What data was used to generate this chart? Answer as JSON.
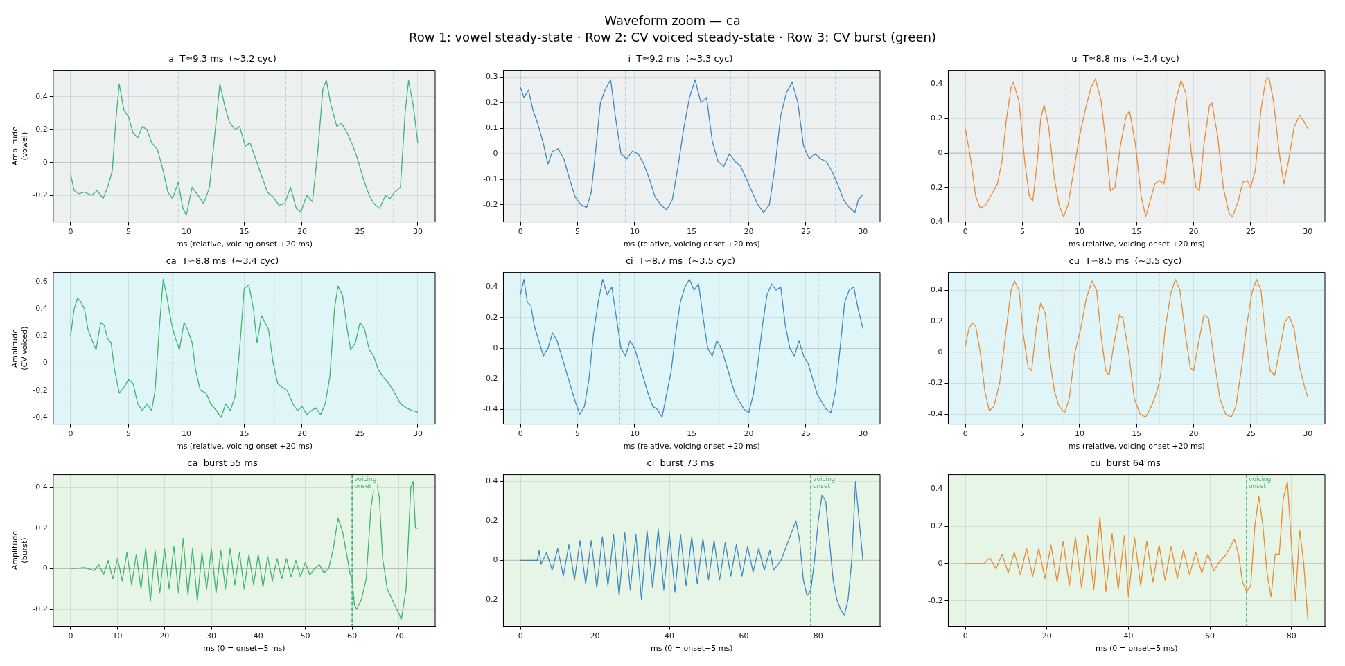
{
  "chart_data": [
    {
      "type": "other",
      "title": "Waveform zoom — ca",
      "subtitle": "Row 1: vowel steady-state · Row 2: CV voiced steady-state · Row 3: CV burst (green)"
    },
    {
      "type": "line",
      "title": "a  T≈9.3 ms  (~3.2 cyc)",
      "xlabel": "ms (relative, voicing onset +20 ms)",
      "ylabel": "Amplitude\n(vowel)",
      "xlim": [
        -1.5,
        31.5
      ],
      "xticks": [
        0,
        5,
        10,
        15,
        20,
        25,
        30
      ],
      "ylim": [
        -0.362,
        0.562
      ],
      "yticks": [
        -0.2,
        0,
        0.2,
        0.4
      ],
      "grid": true,
      "x": [
        0,
        0.3,
        0.7,
        1.2,
        1.8,
        2.3,
        2.8,
        3.2,
        3.6,
        3.9,
        4.2,
        4.6,
        5.0,
        5.4,
        5.8,
        6.2,
        6.6,
        7.0,
        7.5,
        8.0,
        8.4,
        8.8,
        9.3,
        9.7,
        10.0,
        10.5,
        11.0,
        11.5,
        12.0,
        12.5,
        12.9,
        13.3,
        13.7,
        14.2,
        14.6,
        15.1,
        15.5,
        16.0,
        16.5,
        17.0,
        17.5,
        18.0,
        18.5,
        19.0,
        19.5,
        19.9,
        20.4,
        20.9,
        21.4,
        21.8,
        22.1,
        22.5,
        23.0,
        23.4,
        23.9,
        24.4,
        24.8,
        25.3,
        25.8,
        26.2,
        26.7,
        27.2,
        27.6,
        28.0,
        28.5,
        28.9,
        29.2,
        29.6,
        30.0
      ],
      "series": [
        {
          "color": "#3cb46e",
          "values": [
            -0.07,
            -0.17,
            -0.19,
            -0.18,
            -0.2,
            -0.17,
            -0.22,
            -0.15,
            -0.05,
            0.25,
            0.48,
            0.32,
            0.28,
            0.18,
            0.15,
            0.22,
            0.2,
            0.12,
            0.08,
            -0.05,
            -0.18,
            -0.22,
            -0.12,
            -0.28,
            -0.32,
            -0.15,
            -0.2,
            -0.25,
            -0.15,
            0.2,
            0.48,
            0.35,
            0.25,
            0.2,
            0.22,
            0.1,
            0.12,
            0.02,
            -0.08,
            -0.18,
            -0.21,
            -0.26,
            -0.25,
            -0.15,
            -0.28,
            -0.3,
            -0.2,
            -0.24,
            0.1,
            0.45,
            0.5,
            0.35,
            0.22,
            0.24,
            0.18,
            0.1,
            0.02,
            -0.1,
            -0.2,
            -0.25,
            -0.28,
            -0.2,
            -0.22,
            -0.18,
            -0.15,
            0.3,
            0.5,
            0.35,
            0.12
          ]
        }
      ],
      "ref_lines": [
        {
          "axis": "y",
          "value": 0,
          "color": "#b4b8b8",
          "line_style": "solid"
        },
        {
          "axis": "x",
          "value": 0,
          "color": "#9fd9b8",
          "line_style": "dashed"
        },
        {
          "axis": "x",
          "value": 9.3,
          "color": "#9fd9b8",
          "line_style": "dashed"
        },
        {
          "axis": "x",
          "value": 18.6,
          "color": "#9fd9b8",
          "line_style": "dashed"
        },
        {
          "axis": "x",
          "value": 27.9,
          "color": "#9fd9b8",
          "line_style": "dashed"
        }
      ]
    },
    {
      "type": "line",
      "title": "i  T≈9.2 ms  (~3.3 cyc)",
      "xlabel": "ms (relative, voicing onset +20 ms)",
      "xlim": [
        -1.5,
        31.5
      ],
      "xticks": [
        0,
        5,
        10,
        15,
        20,
        25,
        30
      ],
      "ylim": [
        -0.267,
        0.327
      ],
      "yticks": [
        -0.2,
        -0.1,
        0,
        0.1,
        0.2,
        0.3
      ],
      "grid": true,
      "x": [
        0,
        0.3,
        0.7,
        1.1,
        1.5,
        2.0,
        2.4,
        2.8,
        3.3,
        3.8,
        4.3,
        4.8,
        5.3,
        5.8,
        6.2,
        6.6,
        7.0,
        7.4,
        7.9,
        8.3,
        8.8,
        9.3,
        9.8,
        10.3,
        10.8,
        11.3,
        11.8,
        12.3,
        12.8,
        13.3,
        13.8,
        14.3,
        14.8,
        15.3,
        15.8,
        16.3,
        16.8,
        17.3,
        17.8,
        18.3,
        18.8,
        19.3,
        19.8,
        20.3,
        20.8,
        21.3,
        21.8,
        22.3,
        22.8,
        23.3,
        23.8,
        24.3,
        24.8,
        25.3,
        25.8,
        26.3,
        26.8,
        27.3,
        27.8,
        28.3,
        28.8,
        29.3,
        29.6,
        30.0
      ],
      "series": [
        {
          "color": "#3a87c0",
          "values": [
            0.26,
            0.22,
            0.25,
            0.17,
            0.12,
            0.04,
            -0.04,
            0.01,
            0.02,
            -0.02,
            -0.1,
            -0.17,
            -0.2,
            -0.21,
            -0.15,
            0.02,
            0.2,
            0.25,
            0.29,
            0.15,
            0.0,
            -0.02,
            0.01,
            0.0,
            -0.04,
            -0.1,
            -0.17,
            -0.2,
            -0.22,
            -0.18,
            -0.05,
            0.1,
            0.22,
            0.29,
            0.2,
            0.22,
            0.05,
            -0.03,
            -0.05,
            0.0,
            -0.03,
            -0.05,
            -0.1,
            -0.15,
            -0.2,
            -0.23,
            -0.2,
            -0.05,
            0.15,
            0.24,
            0.28,
            0.2,
            0.03,
            -0.02,
            0.0,
            -0.02,
            -0.03,
            -0.07,
            -0.12,
            -0.18,
            -0.21,
            -0.23,
            -0.18,
            -0.16
          ]
        }
      ],
      "ref_lines": [
        {
          "axis": "y",
          "value": 0,
          "color": "#b4b8b8",
          "line_style": "solid"
        },
        {
          "axis": "x",
          "value": 0,
          "color": "#9cc4de",
          "line_style": "dashed"
        },
        {
          "axis": "x",
          "value": 9.2,
          "color": "#9cc4de",
          "line_style": "dashed"
        },
        {
          "axis": "x",
          "value": 18.4,
          "color": "#9cc4de",
          "line_style": "dashed"
        },
        {
          "axis": "x",
          "value": 27.6,
          "color": "#9cc4de",
          "line_style": "dashed"
        }
      ]
    },
    {
      "type": "line",
      "title": "u  T≈8.8 ms  (~3.4 cyc)",
      "xlabel": "ms (relative, voicing onset +20 ms)",
      "xlim": [
        -1.5,
        31.5
      ],
      "xticks": [
        0,
        5,
        10,
        15,
        20,
        25,
        30
      ],
      "ylim": [
        -0.4,
        0.48
      ],
      "yticks": [
        -0.4,
        -0.2,
        0,
        0.2,
        0.4
      ],
      "grid": true,
      "x": [
        0,
        0.5,
        0.9,
        1.3,
        1.8,
        2.3,
        2.8,
        3.2,
        3.6,
        4.0,
        4.2,
        4.7,
        5.2,
        5.6,
        5.9,
        6.3,
        6.6,
        6.9,
        7.3,
        7.8,
        8.2,
        8.6,
        9.0,
        9.5,
        10.0,
        10.5,
        11.0,
        11.4,
        11.9,
        12.4,
        12.7,
        13.1,
        13.6,
        14.1,
        14.4,
        14.9,
        15.4,
        15.8,
        16.3,
        16.6,
        17.0,
        17.4,
        17.9,
        18.4,
        18.9,
        19.3,
        19.8,
        20.2,
        20.5,
        20.9,
        21.4,
        21.6,
        22.1,
        22.6,
        23.1,
        23.4,
        23.9,
        24.3,
        24.7,
        25.0,
        25.4,
        25.9,
        26.3,
        26.6,
        27.0,
        27.5,
        27.9,
        28.3,
        28.8,
        29.3,
        29.7,
        30.0
      ],
      "series": [
        {
          "color": "#e8892f",
          "values": [
            0.14,
            -0.05,
            -0.25,
            -0.32,
            -0.3,
            -0.24,
            -0.18,
            -0.05,
            0.2,
            0.38,
            0.41,
            0.3,
            -0.05,
            -0.25,
            -0.28,
            -0.05,
            0.2,
            0.28,
            0.15,
            -0.15,
            -0.3,
            -0.37,
            -0.3,
            -0.1,
            0.1,
            0.25,
            0.38,
            0.43,
            0.3,
            0.0,
            -0.22,
            -0.2,
            0.05,
            0.22,
            0.24,
            0.05,
            -0.25,
            -0.37,
            -0.25,
            -0.18,
            -0.16,
            -0.18,
            0.05,
            0.3,
            0.42,
            0.35,
            0.0,
            -0.2,
            -0.22,
            0.05,
            0.28,
            0.29,
            0.1,
            -0.2,
            -0.35,
            -0.37,
            -0.28,
            -0.17,
            -0.16,
            -0.2,
            -0.1,
            0.25,
            0.42,
            0.44,
            0.3,
            0.0,
            -0.18,
            -0.05,
            0.15,
            0.22,
            0.18,
            0.14
          ]
        }
      ],
      "ref_lines": [
        {
          "axis": "y",
          "value": 0,
          "color": "#b4b8b8",
          "line_style": "solid"
        },
        {
          "axis": "x",
          "value": 0,
          "color": "#f4c49a",
          "line_style": "dashed"
        },
        {
          "axis": "x",
          "value": 8.8,
          "color": "#f4c49a",
          "line_style": "dashed"
        },
        {
          "axis": "x",
          "value": 17.6,
          "color": "#f4c49a",
          "line_style": "dashed"
        },
        {
          "axis": "x",
          "value": 26.4,
          "color": "#f4c49a",
          "line_style": "dashed"
        }
      ]
    },
    {
      "type": "line",
      "title": "ca  T≈8.8 ms  (~3.4 cyc)",
      "xlabel": "ms (relative, voicing onset +20 ms)",
      "ylabel": "Amplitude\n(CV voiced)",
      "xlim": [
        -1.5,
        31.5
      ],
      "xticks": [
        0,
        5,
        10,
        15,
        20,
        25,
        30
      ],
      "ylim": [
        -0.45,
        0.67
      ],
      "yticks": [
        -0.4,
        -0.2,
        0,
        0.2,
        0.4,
        0.6
      ],
      "grid": true,
      "x": [
        0,
        0.3,
        0.6,
        0.9,
        1.2,
        1.5,
        1.8,
        2.2,
        2.6,
        2.9,
        3.2,
        3.5,
        3.8,
        4.2,
        4.6,
        5.0,
        5.4,
        5.8,
        6.2,
        6.6,
        7.0,
        7.3,
        7.7,
        8.0,
        8.3,
        8.7,
        9.0,
        9.4,
        9.8,
        10.1,
        10.5,
        10.8,
        11.2,
        11.7,
        12.1,
        12.6,
        13.0,
        13.4,
        13.8,
        14.2,
        14.6,
        15.0,
        15.4,
        15.8,
        16.1,
        16.5,
        16.8,
        17.1,
        17.5,
        17.9,
        18.3,
        18.7,
        19.2,
        19.6,
        20.0,
        20.4,
        20.8,
        21.2,
        21.6,
        22.0,
        22.4,
        22.8,
        23.1,
        23.5,
        23.9,
        24.2,
        24.6,
        25.0,
        25.4,
        25.8,
        26.2,
        26.6,
        27.0,
        27.5,
        28.0,
        28.5,
        29.0,
        29.5,
        30.0
      ],
      "series": [
        {
          "color": "#3cb46e",
          "values": [
            0.2,
            0.4,
            0.48,
            0.45,
            0.4,
            0.25,
            0.18,
            0.1,
            0.3,
            0.28,
            0.18,
            0.15,
            -0.05,
            -0.22,
            -0.18,
            -0.12,
            -0.15,
            -0.3,
            -0.35,
            -0.3,
            -0.35,
            -0.2,
            0.3,
            0.62,
            0.5,
            0.3,
            0.2,
            0.1,
            0.3,
            0.25,
            0.15,
            -0.05,
            -0.2,
            -0.22,
            -0.3,
            -0.35,
            -0.4,
            -0.3,
            -0.35,
            -0.25,
            0.1,
            0.55,
            0.58,
            0.4,
            0.15,
            0.35,
            0.3,
            0.25,
            0.0,
            -0.15,
            -0.18,
            -0.2,
            -0.3,
            -0.35,
            -0.32,
            -0.38,
            -0.35,
            -0.33,
            -0.38,
            -0.3,
            -0.1,
            0.4,
            0.57,
            0.5,
            0.25,
            0.1,
            0.15,
            0.3,
            0.25,
            0.1,
            0.05,
            -0.05,
            -0.1,
            -0.15,
            -0.22,
            -0.3,
            -0.33,
            -0.35,
            -0.36
          ]
        }
      ],
      "ref_lines": [
        {
          "axis": "y",
          "value": 0,
          "color": "#b4b8b8",
          "line_style": "solid"
        },
        {
          "axis": "x",
          "value": 0,
          "color": "#9fd9b8",
          "line_style": "dashed"
        },
        {
          "axis": "x",
          "value": 8.8,
          "color": "#9fd9b8",
          "line_style": "dashed"
        },
        {
          "axis": "x",
          "value": 17.6,
          "color": "#9fd9b8",
          "line_style": "dashed"
        },
        {
          "axis": "x",
          "value": 26.4,
          "color": "#9fd9b8",
          "line_style": "dashed"
        }
      ]
    },
    {
      "type": "line",
      "title": "ci  T≈8.7 ms  (~3.5 cyc)",
      "xlabel": "ms (relative, voicing onset +20 ms)",
      "xlim": [
        -1.5,
        31.5
      ],
      "xticks": [
        0,
        5,
        10,
        15,
        20,
        25,
        30
      ],
      "ylim": [
        -0.495,
        0.495
      ],
      "yticks": [
        -0.4,
        -0.2,
        0,
        0.2,
        0.4
      ],
      "grid": true,
      "x": [
        0,
        0.3,
        0.6,
        0.9,
        1.2,
        1.6,
        2.0,
        2.4,
        2.8,
        3.2,
        3.6,
        4.0,
        4.4,
        4.8,
        5.2,
        5.6,
        6.0,
        6.4,
        6.8,
        7.2,
        7.6,
        8.0,
        8.4,
        8.8,
        9.2,
        9.6,
        10.0,
        10.4,
        10.8,
        11.2,
        11.6,
        12.0,
        12.4,
        12.8,
        13.2,
        13.6,
        14.0,
        14.4,
        14.8,
        15.2,
        15.6,
        16.0,
        16.4,
        16.8,
        17.2,
        17.6,
        18.0,
        18.4,
        18.8,
        19.2,
        19.6,
        20.0,
        20.4,
        20.8,
        21.2,
        21.6,
        22.0,
        22.4,
        22.8,
        23.2,
        23.6,
        24.0,
        24.4,
        24.8,
        25.2,
        25.6,
        26.0,
        26.4,
        26.8,
        27.2,
        27.6,
        28.0,
        28.4,
        28.8,
        29.2,
        29.6,
        30.0
      ],
      "series": [
        {
          "color": "#3a87c0",
          "values": [
            0.35,
            0.45,
            0.3,
            0.28,
            0.15,
            0.05,
            -0.05,
            0.0,
            0.1,
            0.05,
            -0.05,
            -0.15,
            -0.25,
            -0.35,
            -0.43,
            -0.38,
            -0.2,
            0.1,
            0.3,
            0.45,
            0.35,
            0.4,
            0.2,
            0.0,
            -0.05,
            0.05,
            0.0,
            -0.1,
            -0.2,
            -0.3,
            -0.38,
            -0.4,
            -0.45,
            -0.3,
            -0.15,
            0.1,
            0.3,
            0.4,
            0.45,
            0.38,
            0.42,
            0.2,
            0.0,
            -0.05,
            0.05,
            0.0,
            -0.1,
            -0.2,
            -0.3,
            -0.35,
            -0.4,
            -0.42,
            -0.3,
            -0.1,
            0.15,
            0.35,
            0.42,
            0.38,
            0.4,
            0.15,
            0.0,
            -0.05,
            0.05,
            -0.05,
            -0.1,
            -0.2,
            -0.3,
            -0.35,
            -0.4,
            -0.42,
            -0.28,
            0.0,
            0.3,
            0.38,
            0.4,
            0.25,
            0.13
          ]
        }
      ],
      "ref_lines": [
        {
          "axis": "y",
          "value": 0,
          "color": "#b4b8b8",
          "line_style": "solid"
        },
        {
          "axis": "x",
          "value": 0,
          "color": "#9cc4de",
          "line_style": "dashed"
        },
        {
          "axis": "x",
          "value": 8.7,
          "color": "#9cc4de",
          "line_style": "dashed"
        },
        {
          "axis": "x",
          "value": 17.4,
          "color": "#9cc4de",
          "line_style": "dashed"
        },
        {
          "axis": "x",
          "value": 26.1,
          "color": "#9cc4de",
          "line_style": "dashed"
        }
      ]
    },
    {
      "type": "line",
      "title": "cu  T≈8.5 ms  (~3.5 cyc)",
      "xlabel": "ms (relative, voicing onset +20 ms)",
      "xlim": [
        -1.5,
        31.5
      ],
      "xticks": [
        0,
        5,
        10,
        15,
        20,
        25,
        30
      ],
      "ylim": [
        -0.465,
        0.515
      ],
      "yticks": [
        -0.4,
        -0.2,
        0,
        0.2,
        0.4
      ],
      "grid": true,
      "x": [
        0,
        0.3,
        0.6,
        0.9,
        1.3,
        1.7,
        2.1,
        2.5,
        3.0,
        3.5,
        4.0,
        4.3,
        4.7,
        5.1,
        5.5,
        5.8,
        6.2,
        6.6,
        7.0,
        7.4,
        7.8,
        8.2,
        8.7,
        9.1,
        9.6,
        10.1,
        10.6,
        11.1,
        11.5,
        11.9,
        12.3,
        12.6,
        13.0,
        13.5,
        13.8,
        14.3,
        14.8,
        15.3,
        15.8,
        16.3,
        16.8,
        17.1,
        17.5,
        18.0,
        18.4,
        18.8,
        19.3,
        19.7,
        20.0,
        20.4,
        20.9,
        21.3,
        21.8,
        22.3,
        22.8,
        23.3,
        23.7,
        24.2,
        24.6,
        25.1,
        25.5,
        25.9,
        26.3,
        26.7,
        27.1,
        27.5,
        28.0,
        28.4,
        28.8,
        29.3,
        29.7,
        30.0
      ],
      "series": [
        {
          "color": "#e8892f",
          "values": [
            0.04,
            0.15,
            0.19,
            0.17,
            0.0,
            -0.25,
            -0.38,
            -0.35,
            -0.2,
            0.1,
            0.4,
            0.46,
            0.4,
            0.1,
            -0.1,
            -0.12,
            0.15,
            0.32,
            0.25,
            -0.05,
            -0.25,
            -0.35,
            -0.39,
            -0.3,
            0.0,
            0.15,
            0.35,
            0.46,
            0.4,
            0.1,
            -0.12,
            -0.15,
            0.05,
            0.24,
            0.22,
            0.0,
            -0.3,
            -0.4,
            -0.42,
            -0.35,
            -0.25,
            -0.15,
            0.15,
            0.38,
            0.47,
            0.4,
            0.1,
            -0.1,
            -0.12,
            0.05,
            0.24,
            0.22,
            -0.05,
            -0.3,
            -0.4,
            -0.42,
            -0.35,
            -0.1,
            0.15,
            0.38,
            0.47,
            0.4,
            0.1,
            -0.12,
            -0.15,
            0.0,
            0.2,
            0.23,
            0.15,
            -0.1,
            -0.22,
            -0.29
          ]
        }
      ],
      "ref_lines": [
        {
          "axis": "y",
          "value": 0,
          "color": "#b4b8b8",
          "line_style": "solid"
        },
        {
          "axis": "x",
          "value": 0,
          "color": "#f4c49a",
          "line_style": "dashed"
        },
        {
          "axis": "x",
          "value": 8.5,
          "color": "#f4c49a",
          "line_style": "dashed"
        },
        {
          "axis": "x",
          "value": 17,
          "color": "#f4c49a",
          "line_style": "dashed"
        },
        {
          "axis": "x",
          "value": 25.5,
          "color": "#f4c49a",
          "line_style": "dashed"
        }
      ]
    },
    {
      "type": "line",
      "title": "ca  burst 55 ms",
      "xlabel": "ms (0 = onset−5 ms)",
      "ylabel": "Amplitude\n(burst)",
      "xlim": [
        -3.7,
        77.7
      ],
      "xticks": [
        0,
        10,
        20,
        30,
        40,
        50,
        60,
        70
      ],
      "ylim": [
        -0.284,
        0.464
      ],
      "yticks": [
        -0.2,
        0,
        0.2,
        0.4
      ],
      "grid": true,
      "x": [
        0,
        3,
        5,
        6,
        7,
        8,
        9,
        10,
        11,
        12,
        13,
        14,
        15,
        16,
        17,
        18,
        19,
        20,
        21,
        22,
        23,
        24,
        25,
        26,
        27,
        28,
        29,
        30,
        31,
        32,
        33,
        34,
        35,
        36,
        37,
        38,
        39,
        40,
        41,
        42,
        43,
        44,
        45,
        46,
        47,
        48,
        49,
        50,
        51,
        52,
        53,
        54,
        55,
        56,
        57,
        58,
        59,
        59.5,
        60,
        60.5,
        61,
        62,
        63,
        64,
        65,
        65.8,
        66.5,
        67.5,
        68.5,
        69.5,
        70.5,
        71.5,
        72.5,
        73,
        73.5,
        74
      ],
      "series": [
        {
          "color": "#3cb46e",
          "values": [
            0,
            0.005,
            -0.01,
            0.02,
            -0.03,
            0.04,
            -0.05,
            0.05,
            -0.06,
            0.08,
            -0.08,
            0.07,
            -0.1,
            0.1,
            -0.16,
            0.09,
            -0.12,
            0.1,
            -0.1,
            0.11,
            -0.12,
            0.15,
            -0.13,
            0.1,
            -0.16,
            0.08,
            -0.1,
            0.1,
            -0.12,
            0.09,
            -0.1,
            0.1,
            -0.08,
            0.08,
            -0.1,
            0.07,
            -0.08,
            0.07,
            -0.09,
            0.06,
            -0.06,
            0.05,
            -0.05,
            0.05,
            -0.04,
            0.04,
            -0.04,
            0.03,
            -0.03,
            0.0,
            0.02,
            -0.02,
            0.0,
            0.1,
            0.25,
            0.18,
            0.05,
            -0.02,
            -0.05,
            -0.18,
            -0.2,
            -0.15,
            -0.05,
            0.3,
            0.45,
            0.35,
            0.05,
            -0.1,
            -0.15,
            -0.2,
            -0.25,
            -0.1,
            0.4,
            0.43,
            0.2,
            0.2
          ]
        }
      ],
      "ref_lines": [
        {
          "axis": "y",
          "value": 0,
          "color": "#b4b8b8",
          "line_style": "solid"
        },
        {
          "axis": "x",
          "value": 60,
          "color": "#3cb46e",
          "line_style": "dashed",
          "label": "voicing\nonset"
        }
      ]
    },
    {
      "type": "line",
      "title": "ci  burst 73 ms",
      "xlabel": "ms (0 = onset−5 ms)",
      "xlim": [
        -4.6,
        96.6
      ],
      "xticks": [
        0,
        20,
        40,
        60,
        80
      ],
      "ylim": [
        -0.335,
        0.435
      ],
      "yticks": [
        -0.2,
        0,
        0.2,
        0.4
      ],
      "grid": true,
      "x": [
        0,
        4.5,
        5,
        5.5,
        7,
        8.5,
        10,
        11.5,
        13,
        14.5,
        16,
        17.5,
        19,
        20.5,
        22,
        23.5,
        25,
        26.5,
        28,
        29.5,
        31,
        32.5,
        34,
        35.5,
        37,
        38.5,
        40,
        41.5,
        43,
        44.5,
        46,
        47.5,
        49,
        50.5,
        52,
        53.5,
        55,
        56.5,
        58,
        59.5,
        61,
        62.5,
        64,
        65.5,
        67,
        68,
        70,
        72,
        74,
        75,
        76,
        77,
        78,
        79,
        80,
        81,
        82,
        83,
        84,
        85,
        86,
        87,
        88,
        89,
        90,
        91,
        92
      ],
      "series": [
        {
          "color": "#3a87c0",
          "values": [
            0,
            0,
            0.05,
            -0.02,
            0.04,
            -0.05,
            0.06,
            -0.08,
            0.08,
            -0.1,
            0.1,
            -0.12,
            0.1,
            -0.14,
            0.12,
            -0.13,
            0.13,
            -0.18,
            0.14,
            -0.15,
            0.13,
            -0.2,
            0.15,
            -0.14,
            0.16,
            -0.15,
            0.14,
            -0.16,
            0.13,
            -0.13,
            0.12,
            -0.12,
            0.11,
            -0.1,
            0.1,
            -0.1,
            0.09,
            -0.08,
            0.08,
            -0.08,
            0.07,
            -0.06,
            0.06,
            -0.05,
            0.05,
            -0.05,
            0.0,
            0.1,
            0.2,
            0.1,
            -0.1,
            -0.18,
            -0.15,
            0.0,
            0.2,
            0.33,
            0.3,
            0.1,
            -0.1,
            -0.2,
            -0.25,
            -0.28,
            -0.2,
            0.0,
            0.4,
            0.2,
            0.0
          ]
        }
      ],
      "ref_lines": [
        {
          "axis": "y",
          "value": 0,
          "color": "#b4b8b8",
          "line_style": "solid"
        },
        {
          "axis": "x",
          "value": 78,
          "color": "#3cb46e",
          "line_style": "dashed",
          "label": "voicing\nonset"
        }
      ]
    },
    {
      "type": "line",
      "title": "cu  burst 64 ms",
      "xlabel": "ms (0 = onset−5 ms)",
      "xlim": [
        -4.2,
        88.2
      ],
      "xticks": [
        0,
        20,
        40,
        60,
        80
      ],
      "ylim": [
        -0.337,
        0.477
      ],
      "yticks": [
        -0.2,
        0,
        0.2,
        0.4
      ],
      "grid": true,
      "x": [
        0,
        4.5,
        6,
        7.5,
        9,
        10.5,
        12,
        13.5,
        15,
        16.5,
        18,
        19.5,
        21,
        22.5,
        24,
        25.5,
        27,
        28.5,
        30,
        31.5,
        33,
        34.5,
        36,
        37.5,
        39,
        40,
        41.5,
        43,
        44.5,
        46,
        47.5,
        49,
        50.5,
        52,
        53.5,
        55,
        56.5,
        58,
        59.5,
        61,
        62,
        64,
        66,
        67,
        68,
        69,
        70,
        71,
        72,
        73,
        74,
        75,
        76,
        77,
        78,
        79,
        80,
        81,
        82,
        83,
        84
      ],
      "series": [
        {
          "color": "#e8892f",
          "values": [
            0,
            0,
            0.03,
            -0.03,
            0.05,
            -0.05,
            0.06,
            -0.06,
            0.08,
            -0.07,
            0.08,
            -0.08,
            0.1,
            -0.1,
            0.12,
            -0.12,
            0.14,
            -0.13,
            0.15,
            -0.14,
            0.25,
            -0.15,
            0.16,
            -0.14,
            0.15,
            -0.18,
            0.14,
            -0.12,
            0.12,
            -0.1,
            0.1,
            -0.09,
            0.09,
            -0.08,
            0.07,
            -0.06,
            0.06,
            -0.05,
            0.05,
            -0.04,
            0.0,
            0.05,
            0.13,
            0.05,
            -0.1,
            -0.15,
            -0.12,
            0.2,
            0.36,
            0.2,
            -0.05,
            -0.18,
            0.05,
            0.05,
            0.35,
            0.44,
            0.1,
            -0.2,
            0.18,
            0.0,
            -0.3
          ]
        }
      ],
      "ref_lines": [
        {
          "axis": "y",
          "value": 0,
          "color": "#b4b8b8",
          "line_style": "solid"
        },
        {
          "axis": "x",
          "value": 69,
          "color": "#3cb46e",
          "line_style": "dashed",
          "label": "voicing\nonset"
        }
      ]
    }
  ]
}
